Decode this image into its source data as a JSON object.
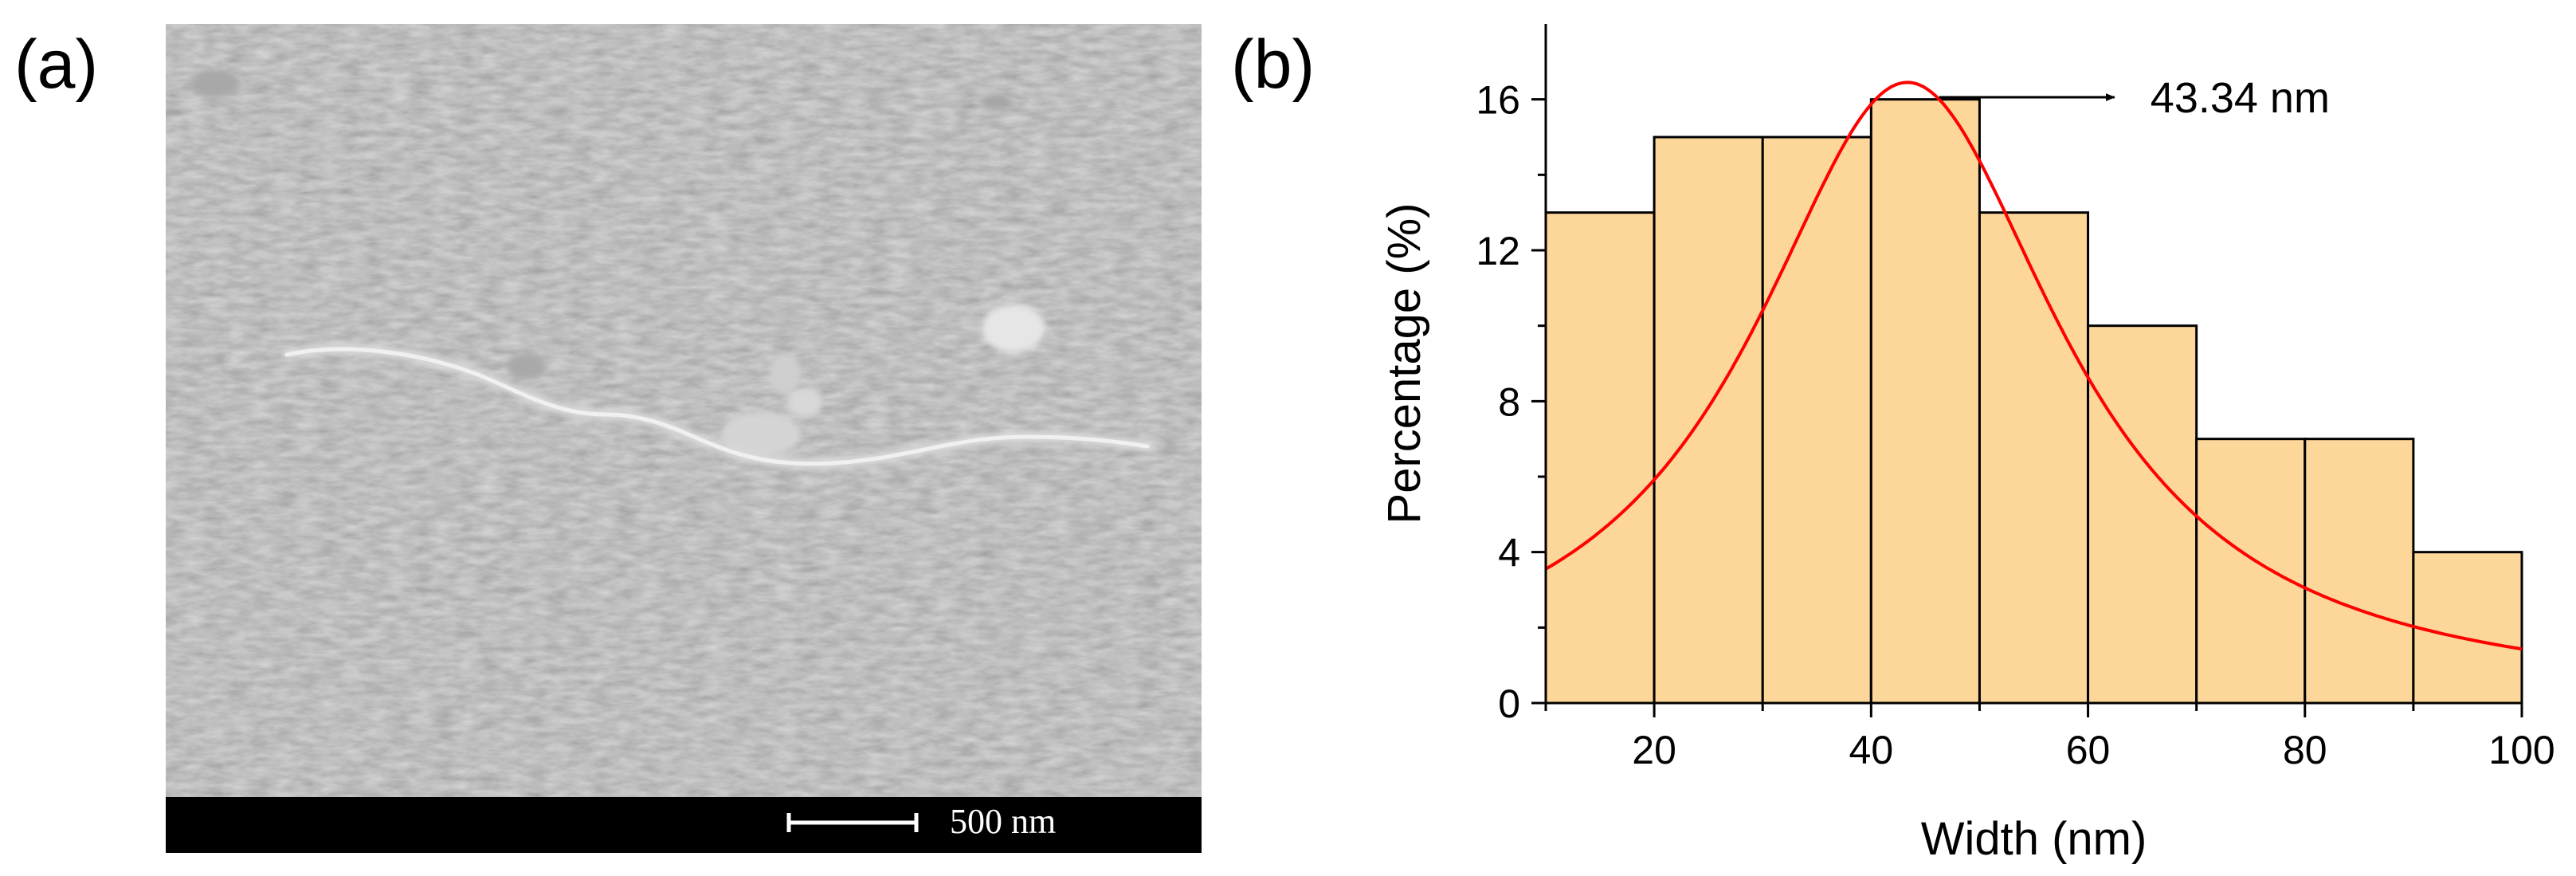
{
  "panel_a": {
    "label": "(a)",
    "scale_bar_label": "500 nm"
  },
  "panel_b": {
    "label": "(b)"
  },
  "chart_data": {
    "type": "bar",
    "title": "",
    "xlabel": "Width (nm)",
    "ylabel": "Percentage (%)",
    "xlim": [
      10,
      100
    ],
    "ylim": [
      0,
      18
    ],
    "x_ticks": [
      20,
      40,
      60,
      80,
      100
    ],
    "y_ticks": [
      0,
      4,
      8,
      12,
      16
    ],
    "bins": [
      {
        "start": 10,
        "end": 20,
        "value": 13
      },
      {
        "start": 20,
        "end": 30,
        "value": 15
      },
      {
        "start": 30,
        "end": 40,
        "value": 15
      },
      {
        "start": 40,
        "end": 50,
        "value": 16
      },
      {
        "start": 50,
        "end": 60,
        "value": 13
      },
      {
        "start": 60,
        "end": 70,
        "value": 10
      },
      {
        "start": 70,
        "end": 80,
        "value": 7
      },
      {
        "start": 80,
        "end": 90,
        "value": 7
      },
      {
        "start": 90,
        "end": 100,
        "value": 4
      }
    ],
    "fit_curve": {
      "type": "lorentzian",
      "center": 43.34,
      "peak": 16.45,
      "half_width": 17.5,
      "color": "#ff0000"
    },
    "annotation": {
      "text": "43.34 nm",
      "points_to_x": 43.34
    },
    "bar_fill": "#fdd699",
    "bar_edge": "#000000",
    "grid": false
  }
}
